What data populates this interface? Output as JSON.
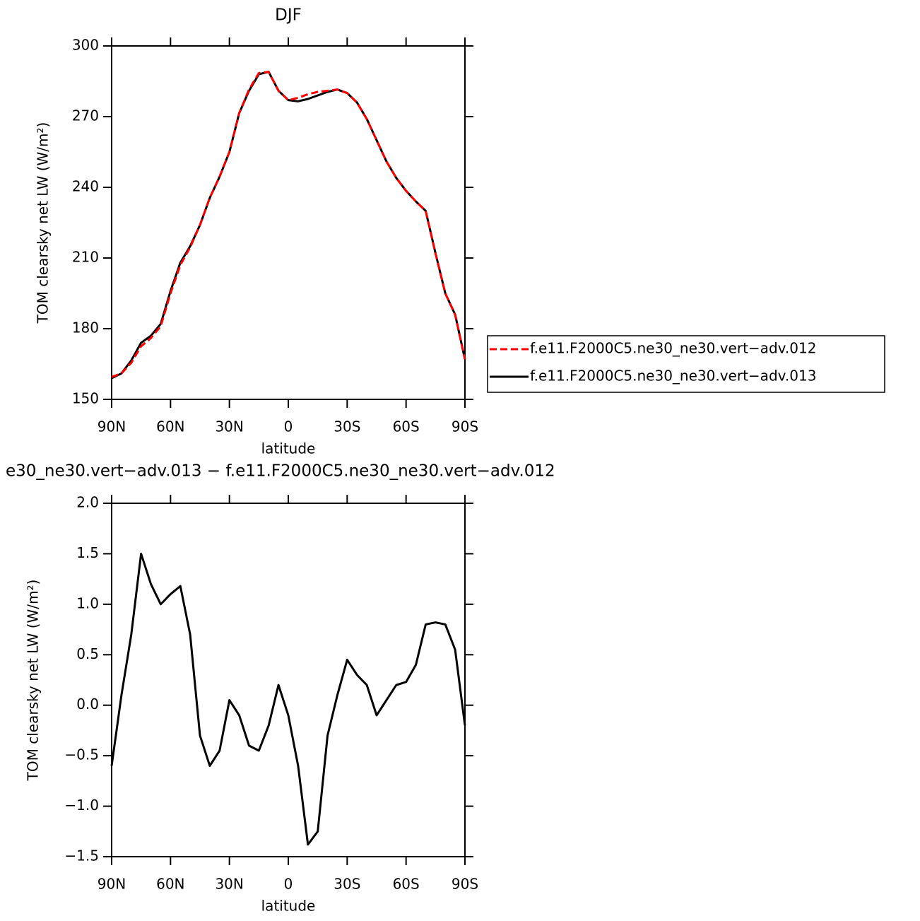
{
  "chart_data": [
    {
      "type": "line",
      "title": "DJF",
      "x_label": "latitude",
      "y_label": "TOM clearsky net LW (W/m²)",
      "x": [
        90,
        85,
        80,
        75,
        70,
        65,
        60,
        55,
        50,
        45,
        40,
        35,
        30,
        25,
        20,
        15,
        10,
        5,
        0,
        -5,
        -10,
        -15,
        -20,
        -25,
        -30,
        -35,
        -40,
        -45,
        -50,
        -55,
        -60,
        -65,
        -70,
        -75,
        -80,
        -85,
        -90
      ],
      "xlim": [
        90,
        -90
      ],
      "xticks": [
        {
          "value": 90,
          "label": "90N"
        },
        {
          "value": 60,
          "label": "60N"
        },
        {
          "value": 30,
          "label": "30N"
        },
        0,
        {
          "value": -30,
          "label": "30S"
        },
        {
          "value": -60,
          "label": "60S"
        },
        {
          "value": -90,
          "label": "90S"
        }
      ],
      "ylim": [
        150,
        300
      ],
      "yticks": [
        150,
        180,
        210,
        240,
        270,
        300
      ],
      "legend": "right",
      "series": [
        {
          "name": "f.e11.F2000C5.ne30_ne30.vert−adv.012",
          "color": "#ff0000",
          "line_style": "dashed",
          "values": [
            159.5,
            161,
            165.5,
            172.5,
            176,
            181,
            195,
            207,
            214.5,
            224,
            235.5,
            244.5,
            255,
            271.5,
            281.5,
            288.5,
            289,
            281,
            277,
            278,
            279.5,
            280.5,
            281,
            281.5,
            280,
            276,
            269,
            260,
            251,
            244,
            238.5,
            234,
            230,
            212,
            195,
            186,
            167
          ]
        },
        {
          "name": "f.e11.F2000C5.ne30_ne30.vert−adv.013",
          "color": "#000000",
          "line_style": "solid",
          "values": [
            159,
            161,
            166.5,
            174,
            177,
            182,
            196,
            208,
            215,
            224,
            235.5,
            244.5,
            255,
            271.5,
            281,
            288,
            289,
            281,
            277,
            276.5,
            277.5,
            279,
            280.5,
            281.5,
            280,
            276,
            269,
            260,
            251,
            244,
            238.5,
            234,
            230,
            212,
            195,
            186,
            167
          ]
        }
      ]
    },
    {
      "type": "line",
      "title": "e30_ne30.vert−adv.013 − f.e11.F2000C5.ne30_ne30.vert−adv.012",
      "x_label": "latitude",
      "y_label": "TOM clearsky net LW (W/m²)",
      "x": [
        90,
        85,
        80,
        75,
        70,
        65,
        60,
        55,
        50,
        45,
        40,
        35,
        30,
        25,
        20,
        15,
        10,
        5,
        0,
        -5,
        -10,
        -15,
        -20,
        -25,
        -30,
        -35,
        -40,
        -45,
        -50,
        -55,
        -60,
        -65,
        -70,
        -75,
        -80,
        -85,
        -90
      ],
      "xlim": [
        90,
        -90
      ],
      "xticks": [
        {
          "value": 90,
          "label": "90N"
        },
        {
          "value": 60,
          "label": "60N"
        },
        {
          "value": 30,
          "label": "30N"
        },
        0,
        {
          "value": -30,
          "label": "30S"
        },
        {
          "value": -60,
          "label": "60S"
        },
        {
          "value": -90,
          "label": "90S"
        }
      ],
      "ylim": [
        -1.5,
        2.0
      ],
      "yticks": [
        {
          "value": -1.5,
          "label": "−1.5"
        },
        {
          "value": -1.0,
          "label": "−1.0"
        },
        {
          "value": -0.5,
          "label": "−0.5"
        },
        {
          "value": 0,
          "label": "0.0"
        },
        {
          "value": 0.5,
          "label": "0.5"
        },
        {
          "value": 1.0,
          "label": "1.0"
        },
        {
          "value": 1.5,
          "label": "1.5"
        },
        {
          "value": 2.0,
          "label": "2.0"
        }
      ],
      "series": [
        {
          "color": "#000000",
          "line_style": "solid",
          "values": [
            -0.6,
            0.1,
            0.7,
            1.5,
            1.2,
            1.0,
            1.1,
            1.18,
            0.7,
            -0.3,
            -0.6,
            -0.45,
            0.05,
            -0.1,
            -0.4,
            -0.45,
            -0.2,
            0.2,
            -0.1,
            -0.6,
            -1.38,
            -1.25,
            -0.3,
            0.1,
            0.45,
            0.3,
            0.2,
            -0.1,
            0.05,
            0.2,
            0.23,
            0.4,
            0.8,
            0.82,
            0.8,
            0.55,
            -0.2
          ]
        }
      ]
    }
  ]
}
